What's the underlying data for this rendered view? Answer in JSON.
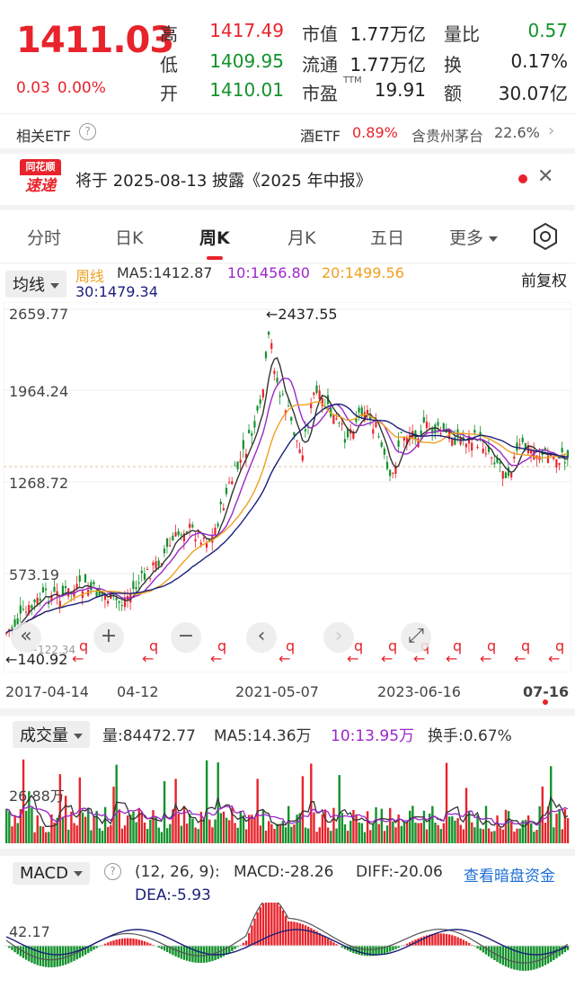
{
  "quote": {
    "price": "1411.03",
    "change": "0.03",
    "change_pct": "0.00%",
    "high_label": "高",
    "high": "1417.49",
    "low_label": "低",
    "low": "1409.95",
    "open_label": "开",
    "open": "1410.01",
    "mktcap_label": "市值",
    "mktcap": "1.77万亿",
    "float_label": "流通",
    "float": "1.77万亿",
    "pe_label": "市盈",
    "pe_sup": "TTM",
    "pe": "19.91",
    "volratio_label": "量比",
    "volratio": "0.57",
    "turnover_label": "换",
    "turnover": "0.17%",
    "amount_label": "额",
    "amount": "30.07亿"
  },
  "etf": {
    "label": "相关ETF",
    "help_icon": "question-circle-icon",
    "name": "酒ETF",
    "pct": "0.89%",
    "holding": "含贵州茅台",
    "holding_pct": "22.6%",
    "arrow": "›"
  },
  "news": {
    "logo_top": "同花顺",
    "logo_bottom": "速递",
    "text": "将于 2025-08-13 披露《2025 年中报》",
    "close": "✕"
  },
  "tabs": [
    "分时",
    "日K",
    "周K",
    "月K",
    "五日",
    "更多"
  ],
  "active_tab": "周K",
  "ma_legend": {
    "dropdown": "均线",
    "period": "周线",
    "ma5": "MA5:1412.87",
    "ma10": "10:1456.80",
    "ma20": "20:1499.56",
    "ma30": "30:1479.34",
    "adjust": "前复权"
  },
  "price_axis": {
    "ticks": [
      "2659.77",
      "1964.24",
      "1268.72",
      "573.19"
    ],
    "max_label": "←2437.55",
    "min_label": "←140.92",
    "min_partial": "−122.34"
  },
  "dates": [
    "2017-04-14",
    "04-12",
    "2021-05-07",
    "2023-06-16",
    "07-16"
  ],
  "volume_legend": {
    "dropdown": "成交量",
    "vol": "量:84472.77",
    "ma5": "MA5:14.36万",
    "ma10": "10:13.95万",
    "turnover": "换手:0.67%",
    "axis_label": "26.88万"
  },
  "macd_legend": {
    "dropdown": "MACD",
    "params": "(12, 26, 9):",
    "macd": "MACD:-28.26",
    "diff": "DIFF:-20.06",
    "dea": "DEA:-5.93",
    "link": "查看暗盘资金",
    "axis_label": "42.17"
  },
  "colors": {
    "up": "#e8232b",
    "down": "#12922b",
    "ma5": "#333333",
    "ma10": "#9b27c9",
    "ma20": "#f0a020",
    "ma30": "#1a1f7a"
  }
}
